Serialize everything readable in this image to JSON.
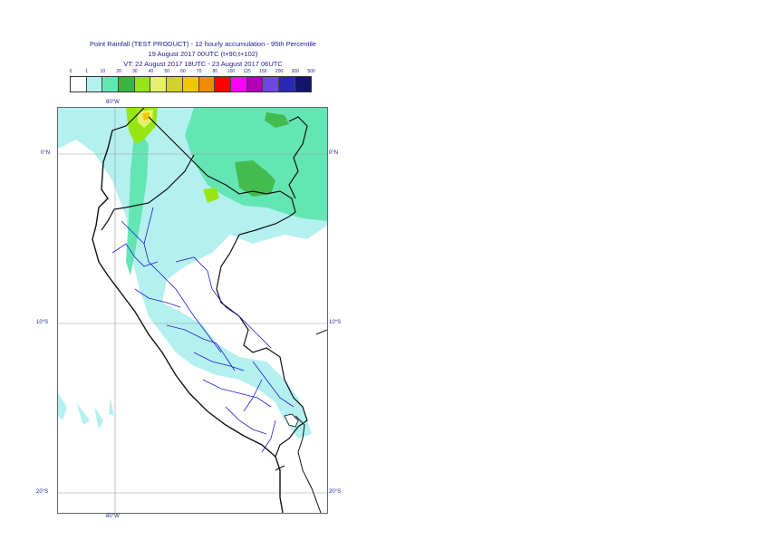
{
  "title": {
    "line1": "Point Rainfall (TEST PRODUCT) - 12 hourly accumulation - 95th Percentile",
    "line2": "19 August 2017 00UTC (t+90,t+102)",
    "line3": "VT: 22 August 2017 18UTC - 23 August 2017 06UTC"
  },
  "legend": {
    "labels": [
      "0",
      "1",
      "10",
      "20",
      "30",
      "40",
      "50",
      "60",
      "70",
      "80",
      "100",
      "125",
      "150",
      "200",
      "300",
      "500"
    ],
    "colors": [
      "#ffffff",
      "#b4f0f0",
      "#64e6b4",
      "#3cb43c",
      "#96e614",
      "#e6f06e",
      "#d2d228",
      "#f0c800",
      "#f08c00",
      "#ff0000",
      "#ff00ff",
      "#b400b4",
      "#6e46e6",
      "#2828b4",
      "#14146e"
    ]
  },
  "map": {
    "lon_labels": {
      "top": "80°W",
      "bottom": "80°W"
    },
    "lat_labels": {
      "eq_left": "0°N",
      "eq_right": "0°N",
      "s10_left": "10°S",
      "s10_right": "10°S",
      "s20_left": "20°S",
      "s20_right": "20°S"
    }
  }
}
